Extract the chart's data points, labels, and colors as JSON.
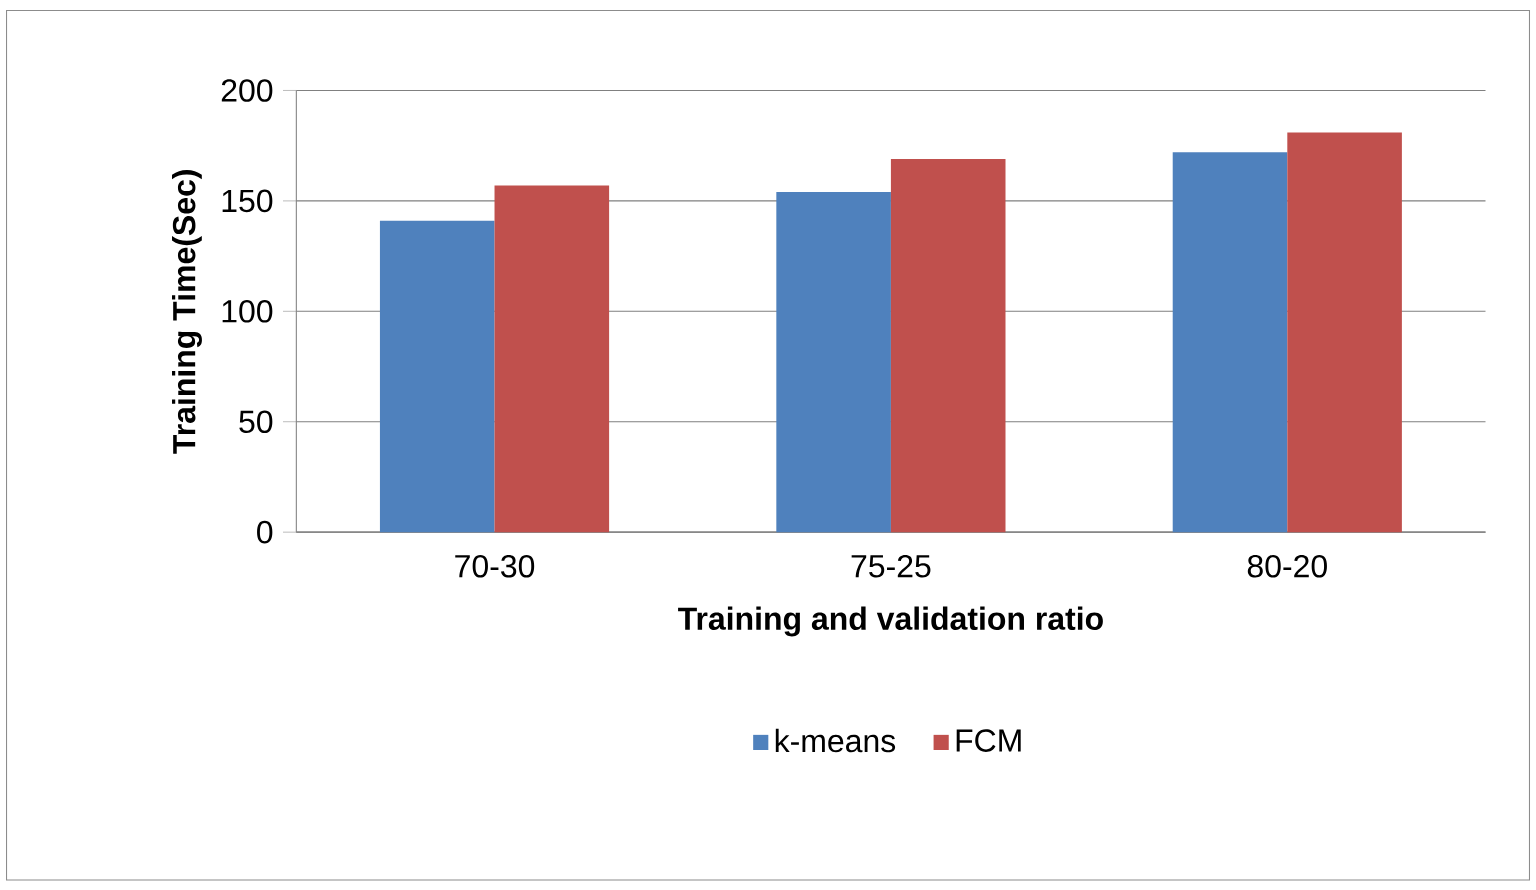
{
  "chart_data": {
    "type": "bar",
    "xlabel": "Training and validation ratio",
    "ylabel": "Training Time(Sec)",
    "categories": [
      "70-30",
      "75-25",
      "80-20"
    ],
    "series": [
      {
        "name": "k-means",
        "color": "#4f81bd",
        "values": [
          141,
          154,
          172
        ]
      },
      {
        "name": "FCM",
        "color": "#c0504d",
        "values": [
          157,
          169,
          181
        ]
      }
    ],
    "ylim": [
      0,
      200
    ],
    "yticks": [
      0,
      50,
      100,
      150,
      200
    ],
    "grid": "y",
    "legend": "bottom"
  }
}
